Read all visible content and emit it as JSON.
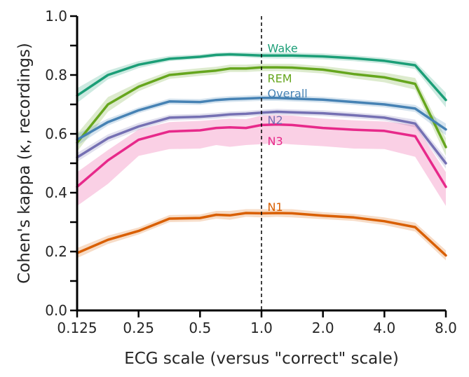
{
  "chart_data": {
    "type": "line",
    "xlabel": "ECG scale (versus \"correct\" scale)",
    "ylabel": "Cohen's kappa (κ, recordings)",
    "x_scale": "log2",
    "xlim": [
      0.125,
      8.0
    ],
    "ylim": [
      0.0,
      1.0
    ],
    "x_ticks": [
      0.125,
      0.25,
      0.5,
      1.0,
      2.0,
      4.0,
      8.0
    ],
    "x_tick_labels": [
      "0.125",
      "0.25",
      "0.5",
      "1.0",
      "2.0",
      "4.0",
      "8.0"
    ],
    "y_ticks": [
      0.0,
      0.2,
      0.4,
      0.6,
      0.8,
      1.0
    ],
    "y_tick_labels": [
      "0.0",
      "0.2",
      "0.4",
      "0.6",
      "0.8",
      "1.0"
    ],
    "y_minor_ticks": [
      0.1,
      0.3,
      0.5,
      0.7,
      0.9
    ],
    "reference_line_x": 1.0,
    "grid": false,
    "x": [
      0.125,
      0.177,
      0.25,
      0.354,
      0.5,
      0.6,
      0.7,
      0.84,
      1.0,
      1.19,
      1.41,
      2.0,
      2.83,
      4.0,
      5.66,
      8.0
    ],
    "series": [
      {
        "name": "Wake",
        "color": "#1b9e77",
        "values": [
          0.73,
          0.8,
          0.835,
          0.855,
          0.862,
          0.868,
          0.87,
          0.868,
          0.866,
          0.866,
          0.866,
          0.863,
          0.857,
          0.848,
          0.833,
          0.715
        ],
        "lower": [
          0.705,
          0.785,
          0.823,
          0.847,
          0.855,
          0.861,
          0.863,
          0.86,
          0.857,
          0.856,
          0.856,
          0.853,
          0.847,
          0.838,
          0.82,
          0.69
        ],
        "upper": [
          0.755,
          0.815,
          0.847,
          0.865,
          0.87,
          0.876,
          0.878,
          0.877,
          0.876,
          0.876,
          0.876,
          0.873,
          0.867,
          0.858,
          0.846,
          0.74
        ]
      },
      {
        "name": "REM",
        "color": "#66a61e",
        "values": [
          0.57,
          0.7,
          0.76,
          0.8,
          0.81,
          0.815,
          0.822,
          0.822,
          0.826,
          0.826,
          0.825,
          0.818,
          0.803,
          0.792,
          0.77,
          0.555
        ],
        "lower": [
          0.54,
          0.675,
          0.745,
          0.787,
          0.797,
          0.802,
          0.81,
          0.81,
          0.813,
          0.813,
          0.812,
          0.805,
          0.788,
          0.775,
          0.75,
          0.525
        ],
        "upper": [
          0.6,
          0.725,
          0.775,
          0.813,
          0.823,
          0.828,
          0.835,
          0.835,
          0.838,
          0.838,
          0.838,
          0.83,
          0.818,
          0.808,
          0.79,
          0.585
        ]
      },
      {
        "name": "Overall",
        "color": "#4682b4",
        "values": [
          0.58,
          0.64,
          0.68,
          0.71,
          0.708,
          0.715,
          0.718,
          0.72,
          0.722,
          0.722,
          0.72,
          0.716,
          0.708,
          0.7,
          0.686,
          0.615
        ],
        "lower": [
          0.56,
          0.628,
          0.67,
          0.7,
          0.698,
          0.705,
          0.708,
          0.71,
          0.712,
          0.712,
          0.71,
          0.706,
          0.698,
          0.69,
          0.674,
          0.595
        ],
        "upper": [
          0.6,
          0.652,
          0.69,
          0.72,
          0.718,
          0.725,
          0.728,
          0.73,
          0.732,
          0.732,
          0.73,
          0.726,
          0.718,
          0.71,
          0.698,
          0.635
        ]
      },
      {
        "name": "N2",
        "color": "#7570b3",
        "values": [
          0.52,
          0.585,
          0.625,
          0.655,
          0.658,
          0.662,
          0.666,
          0.668,
          0.672,
          0.675,
          0.673,
          0.67,
          0.663,
          0.655,
          0.635,
          0.5
        ],
        "lower": [
          0.505,
          0.572,
          0.613,
          0.645,
          0.648,
          0.652,
          0.656,
          0.658,
          0.662,
          0.665,
          0.663,
          0.66,
          0.653,
          0.645,
          0.622,
          0.482
        ],
        "upper": [
          0.535,
          0.598,
          0.637,
          0.665,
          0.668,
          0.672,
          0.676,
          0.678,
          0.682,
          0.685,
          0.683,
          0.68,
          0.673,
          0.665,
          0.648,
          0.518
        ]
      },
      {
        "name": "N3",
        "color": "#e7298a",
        "values": [
          0.42,
          0.51,
          0.58,
          0.608,
          0.612,
          0.62,
          0.622,
          0.62,
          0.63,
          0.632,
          0.63,
          0.62,
          0.614,
          0.61,
          0.592,
          0.42
        ],
        "lower": [
          0.355,
          0.43,
          0.525,
          0.548,
          0.55,
          0.562,
          0.556,
          0.562,
          0.565,
          0.568,
          0.564,
          0.558,
          0.55,
          0.548,
          0.522,
          0.355
        ],
        "upper": [
          0.47,
          0.545,
          0.615,
          0.64,
          0.644,
          0.648,
          0.652,
          0.65,
          0.662,
          0.664,
          0.662,
          0.652,
          0.646,
          0.642,
          0.63,
          0.47
        ]
      },
      {
        "name": "N1",
        "color": "#d95f02",
        "values": [
          0.195,
          0.24,
          0.27,
          0.312,
          0.314,
          0.325,
          0.323,
          0.331,
          0.33,
          0.331,
          0.33,
          0.322,
          0.316,
          0.303,
          0.283,
          0.187
        ],
        "lower": [
          0.178,
          0.226,
          0.258,
          0.3,
          0.302,
          0.312,
          0.308,
          0.318,
          0.316,
          0.318,
          0.316,
          0.31,
          0.304,
          0.29,
          0.268,
          0.17
        ],
        "upper": [
          0.212,
          0.254,
          0.282,
          0.324,
          0.326,
          0.338,
          0.338,
          0.344,
          0.344,
          0.344,
          0.344,
          0.334,
          0.328,
          0.316,
          0.298,
          0.204
        ]
      }
    ],
    "labels": [
      {
        "text": "Wake",
        "color": "#1b9e77",
        "x": 1.07,
        "y": 0.892
      },
      {
        "text": "REM",
        "color": "#66a61e",
        "x": 1.07,
        "y": 0.789
      },
      {
        "text": "Overall",
        "color": "#4682b4",
        "x": 1.07,
        "y": 0.738
      },
      {
        "text": "N2",
        "color": "#7570b3",
        "x": 1.07,
        "y": 0.648
      },
      {
        "text": "N3",
        "color": "#e7298a",
        "x": 1.07,
        "y": 0.576
      },
      {
        "text": "N1",
        "color": "#d95f02",
        "x": 1.07,
        "y": 0.352
      }
    ]
  }
}
